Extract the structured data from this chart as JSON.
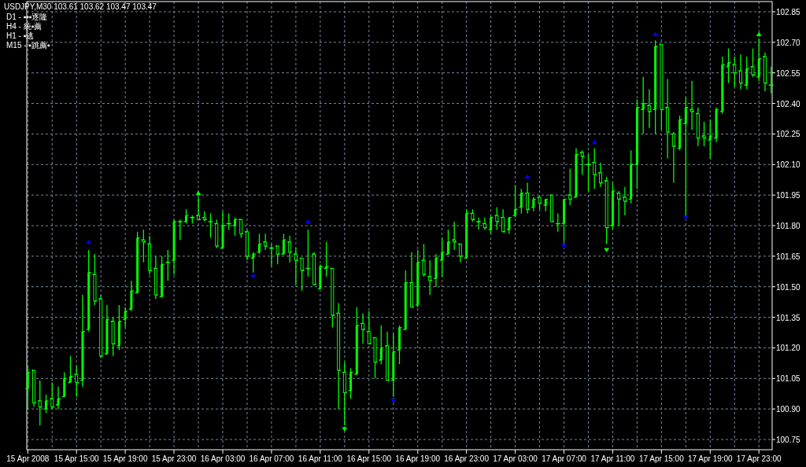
{
  "chart_data": {
    "type": "candlestick",
    "title": "USDJPY,M30  103.61 103.62 103.47 103.47",
    "annotations": [
      "D1 - ▪▪▪逐隆",
      "H4 - 統▪薦",
      "H1 - ▪逃",
      "M15 - ▪跳薦▪"
    ],
    "color": "#00ff00",
    "grid": true,
    "ylim": [
      100.7,
      102.9
    ],
    "yticks": [
      {
        "value": 100.75,
        "label": "100.75"
      },
      {
        "value": 100.9,
        "label": "100.90"
      },
      {
        "value": 101.05,
        "label": "101.05"
      },
      {
        "value": 101.2,
        "label": "101.20"
      },
      {
        "value": 101.35,
        "label": "101.35"
      },
      {
        "value": 101.5,
        "label": "101.50"
      },
      {
        "value": 101.65,
        "label": "101.65"
      },
      {
        "value": 101.8,
        "label": "101.80"
      },
      {
        "value": 101.95,
        "label": "101.95"
      },
      {
        "value": 102.1,
        "label": "102.10"
      },
      {
        "value": 102.25,
        "label": "102.25"
      },
      {
        "value": 102.4,
        "label": "102.40"
      },
      {
        "value": 102.55,
        "label": "102.55"
      },
      {
        "value": 102.7,
        "label": "102.70"
      },
      {
        "value": 102.85,
        "label": "102.85"
      }
    ],
    "xlim": [
      "2008-04-15T10:55",
      "2008-04-18T00:05"
    ],
    "xticks": [
      {
        "value": "2008-04-15T11:00",
        "label": "15 Apr 2008"
      },
      {
        "value": "2008-04-15T13:00",
        "label": null
      },
      {
        "value": "2008-04-15T15:00",
        "label": "15 Apr 15:00"
      },
      {
        "value": "2008-04-15T17:00",
        "label": null
      },
      {
        "value": "2008-04-15T19:00",
        "label": "15 Apr 19:00"
      },
      {
        "value": "2008-04-15T21:00",
        "label": null
      },
      {
        "value": "2008-04-15T23:00",
        "label": "15 Apr 23:00"
      },
      {
        "value": "2008-04-16T01:00",
        "label": null
      },
      {
        "value": "2008-04-16T03:00",
        "label": "16 Apr 03:00"
      },
      {
        "value": "2008-04-16T05:00",
        "label": null
      },
      {
        "value": "2008-04-16T07:00",
        "label": "16 Apr 07:00"
      },
      {
        "value": "2008-04-16T09:00",
        "label": null
      },
      {
        "value": "2008-04-16T11:00",
        "label": "16 Apr 11:00"
      },
      {
        "value": "2008-04-16T13:00",
        "label": null
      },
      {
        "value": "2008-04-16T15:00",
        "label": "16 Apr 15:00"
      },
      {
        "value": "2008-04-16T17:00",
        "label": null
      },
      {
        "value": "2008-04-16T19:00",
        "label": "16 Apr 19:00"
      },
      {
        "value": "2008-04-16T21:00",
        "label": null
      },
      {
        "value": "2008-04-16T23:00",
        "label": "16 Apr 23:00"
      },
      {
        "value": "2008-04-17T01:00",
        "label": null
      },
      {
        "value": "2008-04-17T03:00",
        "label": "17 Apr 03:00"
      },
      {
        "value": "2008-04-17T05:00",
        "label": null
      },
      {
        "value": "2008-04-17T07:00",
        "label": "17 Apr 07:00"
      },
      {
        "value": "2008-04-17T09:00",
        "label": null
      },
      {
        "value": "2008-04-17T11:00",
        "label": "17 Apr 11:00"
      },
      {
        "value": "2008-04-17T13:00",
        "label": null
      },
      {
        "value": "2008-04-17T15:00",
        "label": "17 Apr 15:00"
      },
      {
        "value": "2008-04-17T17:00",
        "label": null
      },
      {
        "value": "2008-04-17T19:00",
        "label": "17 Apr 19:00"
      },
      {
        "value": "2008-04-17T21:00",
        "label": null
      },
      {
        "value": "2008-04-17T23:00",
        "label": "17 Apr 23:00"
      }
    ],
    "x": [
      "2008-04-15T11:00",
      "2008-04-15T11:30",
      "2008-04-15T12:00",
      "2008-04-15T12:30",
      "2008-04-15T13:00",
      "2008-04-15T13:30",
      "2008-04-15T14:00",
      "2008-04-15T14:30",
      "2008-04-15T15:00",
      "2008-04-15T15:30",
      "2008-04-15T16:00",
      "2008-04-15T16:30",
      "2008-04-15T17:00",
      "2008-04-15T17:30",
      "2008-04-15T18:00",
      "2008-04-15T18:30",
      "2008-04-15T19:00",
      "2008-04-15T19:30",
      "2008-04-15T20:00",
      "2008-04-15T20:30",
      "2008-04-15T21:00",
      "2008-04-15T21:30",
      "2008-04-15T22:00",
      "2008-04-15T22:30",
      "2008-04-15T23:00",
      "2008-04-15T23:30",
      "2008-04-16T00:00",
      "2008-04-16T00:30",
      "2008-04-16T01:00",
      "2008-04-16T01:30",
      "2008-04-16T02:00",
      "2008-04-16T02:30",
      "2008-04-16T03:00",
      "2008-04-16T03:30",
      "2008-04-16T04:00",
      "2008-04-16T04:30",
      "2008-04-16T05:00",
      "2008-04-16T05:30",
      "2008-04-16T06:00",
      "2008-04-16T06:30",
      "2008-04-16T07:00",
      "2008-04-16T07:30",
      "2008-04-16T08:00",
      "2008-04-16T08:30",
      "2008-04-16T09:00",
      "2008-04-16T09:30",
      "2008-04-16T10:00",
      "2008-04-16T10:30",
      "2008-04-16T11:00",
      "2008-04-16T11:30",
      "2008-04-16T12:00",
      "2008-04-16T12:30",
      "2008-04-16T13:00",
      "2008-04-16T13:30",
      "2008-04-16T14:00",
      "2008-04-16T14:30",
      "2008-04-16T15:00",
      "2008-04-16T15:30",
      "2008-04-16T16:00",
      "2008-04-16T16:30",
      "2008-04-16T17:00",
      "2008-04-16T17:30",
      "2008-04-16T18:00",
      "2008-04-16T18:30",
      "2008-04-16T19:00",
      "2008-04-16T19:30",
      "2008-04-16T20:00",
      "2008-04-16T20:30",
      "2008-04-16T21:00",
      "2008-04-16T21:30",
      "2008-04-16T22:00",
      "2008-04-16T22:30",
      "2008-04-16T23:00",
      "2008-04-16T23:30",
      "2008-04-17T00:00",
      "2008-04-17T00:30",
      "2008-04-17T01:00",
      "2008-04-17T01:30",
      "2008-04-17T02:00",
      "2008-04-17T02:30",
      "2008-04-17T03:00",
      "2008-04-17T03:30",
      "2008-04-17T04:00",
      "2008-04-17T04:30",
      "2008-04-17T05:00",
      "2008-04-17T05:30",
      "2008-04-17T06:00",
      "2008-04-17T06:30",
      "2008-04-17T07:00",
      "2008-04-17T07:30",
      "2008-04-17T08:00",
      "2008-04-17T08:30",
      "2008-04-17T09:00",
      "2008-04-17T09:30",
      "2008-04-17T10:00",
      "2008-04-17T10:30",
      "2008-04-17T11:00",
      "2008-04-17T11:30",
      "2008-04-17T12:00",
      "2008-04-17T12:30",
      "2008-04-17T13:00",
      "2008-04-17T13:30",
      "2008-04-17T14:00",
      "2008-04-17T14:30",
      "2008-04-17T15:00",
      "2008-04-17T15:30",
      "2008-04-17T16:00",
      "2008-04-17T16:30",
      "2008-04-17T17:00",
      "2008-04-17T17:30",
      "2008-04-17T18:00",
      "2008-04-17T18:30",
      "2008-04-17T19:00",
      "2008-04-17T19:30",
      "2008-04-17T20:00",
      "2008-04-17T20:30",
      "2008-04-17T21:00",
      "2008-04-17T21:30",
      "2008-04-17T22:00",
      "2008-04-17T22:30",
      "2008-04-17T23:00",
      "2008-04-17T23:30",
      "2008-04-18T00:00"
    ],
    "ohlc": [
      [
        101.0,
        101.11,
        100.9,
        101.08
      ],
      [
        101.09,
        101.09,
        100.91,
        100.93
      ],
      [
        100.94,
        101.04,
        100.82,
        100.91
      ],
      [
        100.9,
        100.97,
        100.88,
        100.94
      ],
      [
        100.95,
        101.03,
        100.9,
        100.91
      ],
      [
        100.92,
        101.01,
        100.9,
        100.95
      ],
      [
        100.96,
        101.08,
        100.96,
        101.05
      ],
      [
        101.03,
        101.16,
        101.03,
        101.06
      ],
      [
        101.07,
        101.11,
        100.96,
        101.03
      ],
      [
        101.04,
        101.46,
        101.01,
        101.28
      ],
      [
        101.29,
        101.68,
        101.28,
        101.57
      ],
      [
        101.56,
        101.66,
        101.41,
        101.43
      ],
      [
        101.44,
        101.46,
        101.15,
        101.16
      ],
      [
        101.17,
        101.41,
        101.17,
        101.34
      ],
      [
        101.33,
        101.35,
        101.16,
        101.22
      ],
      [
        101.21,
        101.41,
        101.19,
        101.33
      ],
      [
        101.34,
        101.4,
        101.3,
        101.38
      ],
      [
        101.39,
        101.53,
        101.38,
        101.48
      ],
      [
        101.47,
        101.77,
        101.47,
        101.74
      ],
      [
        101.73,
        101.78,
        101.62,
        101.72
      ],
      [
        101.71,
        101.75,
        101.56,
        101.58
      ],
      [
        101.59,
        101.65,
        101.44,
        101.46
      ],
      [
        101.45,
        101.65,
        101.45,
        101.61
      ],
      [
        101.62,
        101.68,
        101.53,
        101.62
      ],
      [
        101.63,
        101.83,
        101.56,
        101.82
      ],
      [
        101.82,
        101.83,
        101.73,
        101.82
      ],
      [
        101.82,
        101.88,
        101.81,
        101.85
      ],
      [
        101.84,
        101.85,
        101.81,
        101.84
      ],
      [
        101.85,
        101.94,
        101.83,
        101.83
      ],
      [
        101.84,
        101.87,
        101.82,
        101.83
      ],
      [
        101.82,
        101.86,
        101.74,
        101.82
      ],
      [
        101.81,
        101.83,
        101.69,
        101.7
      ],
      [
        101.69,
        101.87,
        101.69,
        101.8
      ],
      [
        101.81,
        101.86,
        101.78,
        101.81
      ],
      [
        101.8,
        101.84,
        101.75,
        101.83
      ],
      [
        101.83,
        101.83,
        101.74,
        101.76
      ],
      [
        101.77,
        101.78,
        101.63,
        101.65
      ],
      [
        101.64,
        101.67,
        101.57,
        101.66
      ],
      [
        101.67,
        101.76,
        101.66,
        101.71
      ],
      [
        101.72,
        101.76,
        101.68,
        101.7
      ],
      [
        101.69,
        101.71,
        101.6,
        101.69
      ],
      [
        101.7,
        101.7,
        101.61,
        101.66
      ],
      [
        101.66,
        101.76,
        101.66,
        101.73
      ],
      [
        101.72,
        101.75,
        101.62,
        101.67
      ],
      [
        101.66,
        101.69,
        101.51,
        101.63
      ],
      [
        101.64,
        101.64,
        101.48,
        101.58
      ],
      [
        101.59,
        101.78,
        101.55,
        101.59
      ],
      [
        101.66,
        101.67,
        101.51,
        101.51
      ],
      [
        101.49,
        101.61,
        101.49,
        101.6
      ],
      [
        101.59,
        101.72,
        101.55,
        101.6
      ],
      [
        101.59,
        101.59,
        101.3,
        101.36
      ],
      [
        101.37,
        101.42,
        100.9,
        101.09
      ],
      [
        101.08,
        101.13,
        100.82,
        100.98
      ],
      [
        100.99,
        101.1,
        100.95,
        101.08
      ],
      [
        101.07,
        101.4,
        101.07,
        101.31
      ],
      [
        101.32,
        101.37,
        101.22,
        101.29
      ],
      [
        101.28,
        101.38,
        101.22,
        101.22
      ],
      [
        101.25,
        101.25,
        101.05,
        101.13
      ],
      [
        101.14,
        101.31,
        101.12,
        101.2
      ],
      [
        101.21,
        101.28,
        101.04,
        101.04
      ],
      [
        101.04,
        101.27,
        100.96,
        101.18
      ],
      [
        101.19,
        101.31,
        101.12,
        101.3
      ],
      [
        101.29,
        101.58,
        101.29,
        101.52
      ],
      [
        101.52,
        101.67,
        101.4,
        101.4
      ],
      [
        101.41,
        101.68,
        101.4,
        101.62
      ],
      [
        101.63,
        101.71,
        101.55,
        101.56
      ],
      [
        101.55,
        101.63,
        101.46,
        101.53
      ],
      [
        101.54,
        101.66,
        101.5,
        101.64
      ],
      [
        101.63,
        101.74,
        101.55,
        101.67
      ],
      [
        101.66,
        101.78,
        101.66,
        101.72
      ],
      [
        101.73,
        101.82,
        101.68,
        101.72
      ],
      [
        101.71,
        101.71,
        101.62,
        101.65
      ],
      [
        101.64,
        101.88,
        101.64,
        101.86
      ],
      [
        101.86,
        101.88,
        101.82,
        101.83
      ],
      [
        101.82,
        101.84,
        101.78,
        101.82
      ],
      [
        101.81,
        101.84,
        101.78,
        101.79
      ],
      [
        101.78,
        101.85,
        101.76,
        101.84
      ],
      [
        101.85,
        101.89,
        101.78,
        101.82
      ],
      [
        101.84,
        101.88,
        101.77,
        101.77
      ],
      [
        101.78,
        101.84,
        101.76,
        101.84
      ],
      [
        101.85,
        102.0,
        101.84,
        101.88
      ],
      [
        101.89,
        101.98,
        101.86,
        101.96
      ],
      [
        101.96,
        102.01,
        101.86,
        101.88
      ],
      [
        101.89,
        101.94,
        101.87,
        101.93
      ],
      [
        101.94,
        101.94,
        101.88,
        101.91
      ],
      [
        101.9,
        101.93,
        101.87,
        101.93
      ],
      [
        101.95,
        101.95,
        101.82,
        101.82
      ],
      [
        101.81,
        101.86,
        101.77,
        101.81
      ],
      [
        101.81,
        101.93,
        101.72,
        101.93
      ],
      [
        101.95,
        102.08,
        101.9,
        101.93
      ],
      [
        101.94,
        102.18,
        101.94,
        102.15
      ],
      [
        102.16,
        102.17,
        102.05,
        102.14
      ],
      [
        102.1,
        102.15,
        101.97,
        102.1
      ],
      [
        102.11,
        102.18,
        101.98,
        102.05
      ],
      [
        102.06,
        102.11,
        101.99,
        102.01
      ],
      [
        102.02,
        102.04,
        101.71,
        101.79
      ],
      [
        101.8,
        102.01,
        101.78,
        101.97
      ],
      [
        101.96,
        101.97,
        101.8,
        101.93
      ],
      [
        101.94,
        101.99,
        101.85,
        101.92
      ],
      [
        101.93,
        102.17,
        101.91,
        102.1
      ],
      [
        102.1,
        102.42,
        101.98,
        102.38
      ],
      [
        102.37,
        102.53,
        102.25,
        102.4
      ],
      [
        102.39,
        102.47,
        102.28,
        102.36
      ],
      [
        102.37,
        102.71,
        102.25,
        102.68
      ],
      [
        102.69,
        102.69,
        102.27,
        102.37
      ],
      [
        102.38,
        102.52,
        102.13,
        102.26
      ],
      [
        102.25,
        102.26,
        102.01,
        102.19
      ],
      [
        102.18,
        102.34,
        102.17,
        102.32
      ],
      [
        102.3,
        102.43,
        101.85,
        102.38
      ],
      [
        102.37,
        102.51,
        102.27,
        102.36
      ],
      [
        102.35,
        102.38,
        102.19,
        102.23
      ],
      [
        102.24,
        102.31,
        102.19,
        102.23
      ],
      [
        102.22,
        102.32,
        102.13,
        102.24
      ],
      [
        102.23,
        102.38,
        102.21,
        102.37
      ],
      [
        102.36,
        102.63,
        102.35,
        102.59
      ],
      [
        102.58,
        102.67,
        102.5,
        102.6
      ],
      [
        102.59,
        102.63,
        102.48,
        102.55
      ],
      [
        102.56,
        102.64,
        102.47,
        102.5
      ],
      [
        102.49,
        102.63,
        102.47,
        102.57
      ],
      [
        102.58,
        102.67,
        102.53,
        102.54
      ],
      [
        102.53,
        102.72,
        102.51,
        102.62
      ],
      [
        102.63,
        102.65,
        102.46,
        102.5
      ],
      [
        102.49,
        102.58,
        102.45,
        102.49
      ]
    ],
    "series": [
      {
        "type": "scatter",
        "marker": "triangle",
        "color": "#0000ff",
        "x": [
          "2008-04-15T16:00",
          "2008-04-16T10:00",
          "2008-04-17T04:00",
          "2008-04-17T09:30",
          "2008-04-17T14:30"
        ],
        "values": [
          101.72,
          101.82,
          102.04,
          102.21,
          102.74
        ]
      },
      {
        "type": "scatter",
        "marker": "triangle",
        "color": "#00ff00",
        "x": [
          "2008-04-16T01:00",
          "2008-04-17T23:00"
        ],
        "values": [
          101.96,
          102.74
        ]
      },
      {
        "type": "scatter",
        "marker": "triangle",
        "color": "#0000ff",
        "x": [
          "2008-04-16T05:30",
          "2008-04-16T17:00",
          "2008-04-17T07:00",
          "2008-04-17T17:00"
        ],
        "values": [
          101.55,
          100.94,
          101.7,
          101.84
        ]
      },
      {
        "type": "scatter",
        "marker": "triangle",
        "color": "#00ff00",
        "x": [
          "2008-04-16T13:00",
          "2008-04-17T10:30"
        ],
        "values": [
          100.8,
          101.68
        ]
      }
    ]
  }
}
